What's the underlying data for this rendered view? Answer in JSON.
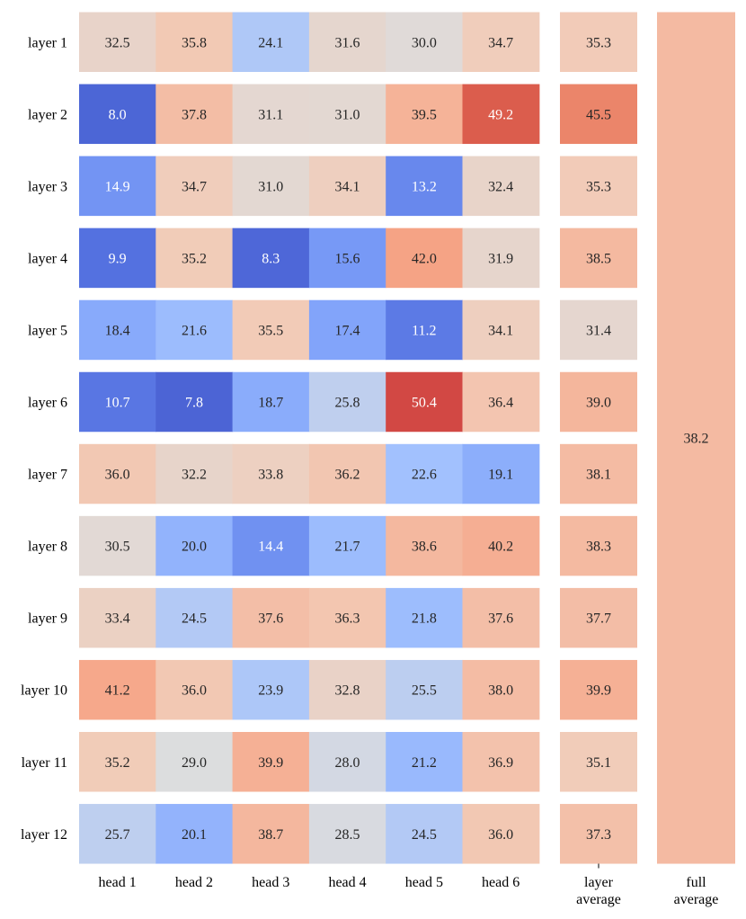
{
  "chart_data": {
    "type": "heatmap",
    "title": "",
    "rows": [
      "layer 1",
      "layer 2",
      "layer 3",
      "layer 4",
      "layer 5",
      "layer 6",
      "layer 7",
      "layer 8",
      "layer 9",
      "layer 10",
      "layer 11",
      "layer 12"
    ],
    "columns": [
      "head 1",
      "head 2",
      "head 3",
      "head 4",
      "head 5",
      "head 6"
    ],
    "values": [
      [
        32.5,
        35.8,
        24.1,
        31.6,
        30.0,
        34.7
      ],
      [
        8.0,
        37.8,
        31.1,
        31.0,
        39.5,
        49.2
      ],
      [
        14.9,
        34.7,
        31.0,
        34.1,
        13.2,
        32.4
      ],
      [
        9.9,
        35.2,
        8.3,
        15.6,
        42.0,
        31.9
      ],
      [
        18.4,
        21.6,
        35.5,
        17.4,
        11.2,
        34.1
      ],
      [
        10.7,
        7.8,
        18.7,
        25.8,
        50.4,
        36.4
      ],
      [
        36.0,
        32.2,
        33.8,
        36.2,
        22.6,
        19.1
      ],
      [
        30.5,
        20.0,
        14.4,
        21.7,
        38.6,
        40.2
      ],
      [
        33.4,
        24.5,
        37.6,
        36.3,
        21.8,
        37.6
      ],
      [
        41.2,
        36.0,
        23.9,
        32.8,
        25.5,
        38.0
      ],
      [
        35.2,
        29.0,
        39.9,
        28.0,
        21.2,
        36.9
      ],
      [
        25.7,
        20.1,
        38.7,
        28.5,
        24.5,
        36.0
      ]
    ],
    "layer_average": {
      "label_line1": "layer",
      "label_line2": "average",
      "values": [
        35.3,
        45.5,
        35.3,
        38.5,
        31.4,
        39.0,
        38.1,
        38.3,
        37.7,
        39.9,
        35.1,
        37.3
      ]
    },
    "full_average": {
      "label_line1": "full",
      "label_line2": "average",
      "value": 38.2
    },
    "color_scale": {
      "name": "coolwarm",
      "vmin": 7.8,
      "vmax": 50.4,
      "low_color": "#3b4cc0",
      "mid_color": "#dddddd",
      "high_color": "#b40426"
    }
  }
}
